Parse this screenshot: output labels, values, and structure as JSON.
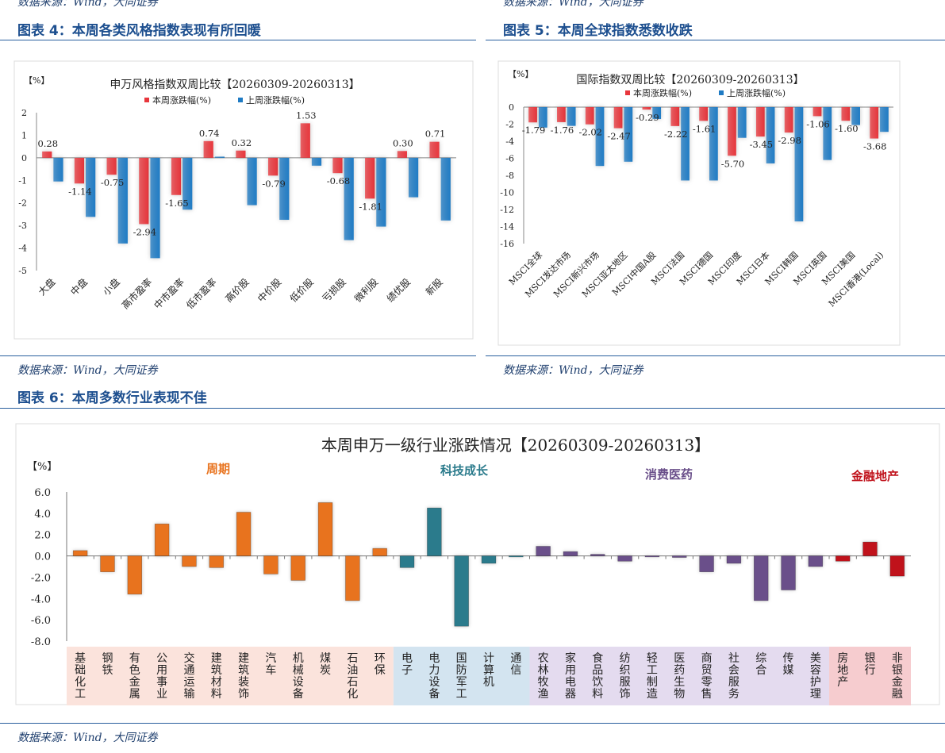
{
  "source_note": "数据来源：Wind，大同证券",
  "figure4": {
    "caption": "图表 4：本周各类风格指数表现有所回暖",
    "chart_data": {
      "type": "bar",
      "title": "申万风格指数双周比较【20260309-20260313】",
      "ylabel": "【%】",
      "ylim": [
        -5,
        2
      ],
      "yticks": [
        2,
        1,
        0,
        -1,
        -2,
        -3,
        -4,
        -5
      ],
      "categories": [
        "大盘",
        "中盘",
        "小盘",
        "高市盈率",
        "中市盈率",
        "低市盈率",
        "高价股",
        "中价股",
        "低价股",
        "亏损股",
        "微利股",
        "绩优股",
        "新股"
      ],
      "series": [
        {
          "name": "本周涨跌幅(%)",
          "color": "#e8363c",
          "values": [
            0.28,
            -1.14,
            -0.75,
            -2.94,
            -1.65,
            0.74,
            0.32,
            -0.79,
            1.53,
            -0.68,
            -1.81,
            0.3,
            0.71
          ],
          "labels": [
            "0.28",
            "-1.14",
            "-0.75",
            "-2.94",
            "-1.65",
            "0.74",
            "0.32",
            "-0.79",
            "1.53",
            "-0.68",
            "-1.81",
            "0.30",
            "0.71"
          ]
        },
        {
          "name": "上周涨跌幅(%)",
          "color": "#1f7bc4",
          "values": [
            -1.05,
            -2.62,
            -3.8,
            -4.45,
            -2.3,
            0.05,
            -2.1,
            -2.75,
            -0.35,
            -3.65,
            -3.05,
            -1.75,
            -2.78
          ]
        }
      ]
    }
  },
  "figure5": {
    "caption": "图表 5：本周全球指数悉数收跌",
    "chart_data": {
      "type": "bar",
      "title": "国际指数双周比较【20260309-20260313】",
      "ylabel": "【%】",
      "ylim": [
        -16,
        0
      ],
      "yticks": [
        0,
        -2,
        -4,
        -6,
        -8,
        -10,
        -12,
        -14,
        -16
      ],
      "categories": [
        "MSCI全球",
        "MSCI发达市场",
        "MSCI新兴市场",
        "MSCI亚太地区",
        "MSCI中国A股",
        "MSCI法国",
        "MSCI德国",
        "MSCI印度",
        "MSCI日本",
        "MSCI韩国",
        "MSCI英国",
        "MSCI美国",
        "MSCI香港(Local)"
      ],
      "series": [
        {
          "name": "本周涨跌幅(%)",
          "color": "#e8363c",
          "values": [
            -1.79,
            -1.76,
            -2.02,
            -2.47,
            -0.29,
            -2.22,
            -1.61,
            -5.7,
            -3.45,
            -2.98,
            -1.06,
            -1.6,
            -3.68
          ],
          "labels": [
            "-1.79",
            "-1.76",
            "-2.02",
            "-2.47",
            "-0.29",
            "-2.22",
            "-1.61",
            "-5.70",
            "-3.45",
            "-2.98",
            "-1.06",
            "-1.60",
            "-3.68"
          ]
        },
        {
          "name": "上周涨跌幅(%)",
          "color": "#1f7bc4",
          "values": [
            -2.4,
            -2.2,
            -6.9,
            -6.4,
            -1.4,
            -8.6,
            -8.6,
            -3.6,
            -6.6,
            -13.4,
            -6.2,
            -2.1,
            -2.9
          ]
        }
      ]
    }
  },
  "figure6": {
    "caption": "图表 6：本周多数行业表现不佳",
    "chart_data": {
      "type": "bar",
      "title": "本周申万一级行业涨跌情况【20260309-20260313】",
      "ylabel": "【%】",
      "ylim": [
        -8,
        6
      ],
      "yticks": [
        "6.0",
        "4.0",
        "2.0",
        "0.0",
        "-2.0",
        "-4.0",
        "-6.0",
        "-8.0"
      ],
      "groups": [
        {
          "name": "周期",
          "color": "#e8731e",
          "bg": "#fbe3dc",
          "start": 0,
          "end": 11
        },
        {
          "name": "科技成长",
          "color": "#2b7b8c",
          "bg": "#d3e4f0",
          "start": 12,
          "end": 16
        },
        {
          "name": "消费医药",
          "color": "#6a4f8a",
          "bg": "#e4dbef",
          "start": 17,
          "end": 27
        },
        {
          "name": "金融地产",
          "color": "#c0121b",
          "bg": "#f6cccf",
          "start": 28,
          "end": 30
        }
      ],
      "categories": [
        "基础化工",
        "钢铁",
        "有色金属",
        "公用事业",
        "交通运输",
        "建筑材料",
        "建筑装饰",
        "汽车",
        "机械设备",
        "煤炭",
        "石油石化",
        "环保",
        "电子",
        "电力设备",
        "国防军工",
        "计算机",
        "通信",
        "农林牧渔",
        "家用电器",
        "食品饮料",
        "纺织服饰",
        "轻工制造",
        "医药生物",
        "商贸零售",
        "社会服务",
        "综合",
        "传媒",
        "美容护理",
        "房地产",
        "银行",
        "非银金融"
      ],
      "values": [
        0.5,
        -1.5,
        -3.6,
        3.0,
        -1.0,
        -1.1,
        4.1,
        -1.7,
        -2.3,
        5.0,
        -4.2,
        0.7,
        -1.1,
        4.5,
        -6.6,
        -0.7,
        -0.1,
        0.9,
        0.4,
        0.15,
        -0.5,
        -0.1,
        -0.15,
        -1.5,
        -0.7,
        -4.2,
        -3.2,
        -1.0,
        -0.5,
        1.3,
        -1.9
      ]
    }
  }
}
